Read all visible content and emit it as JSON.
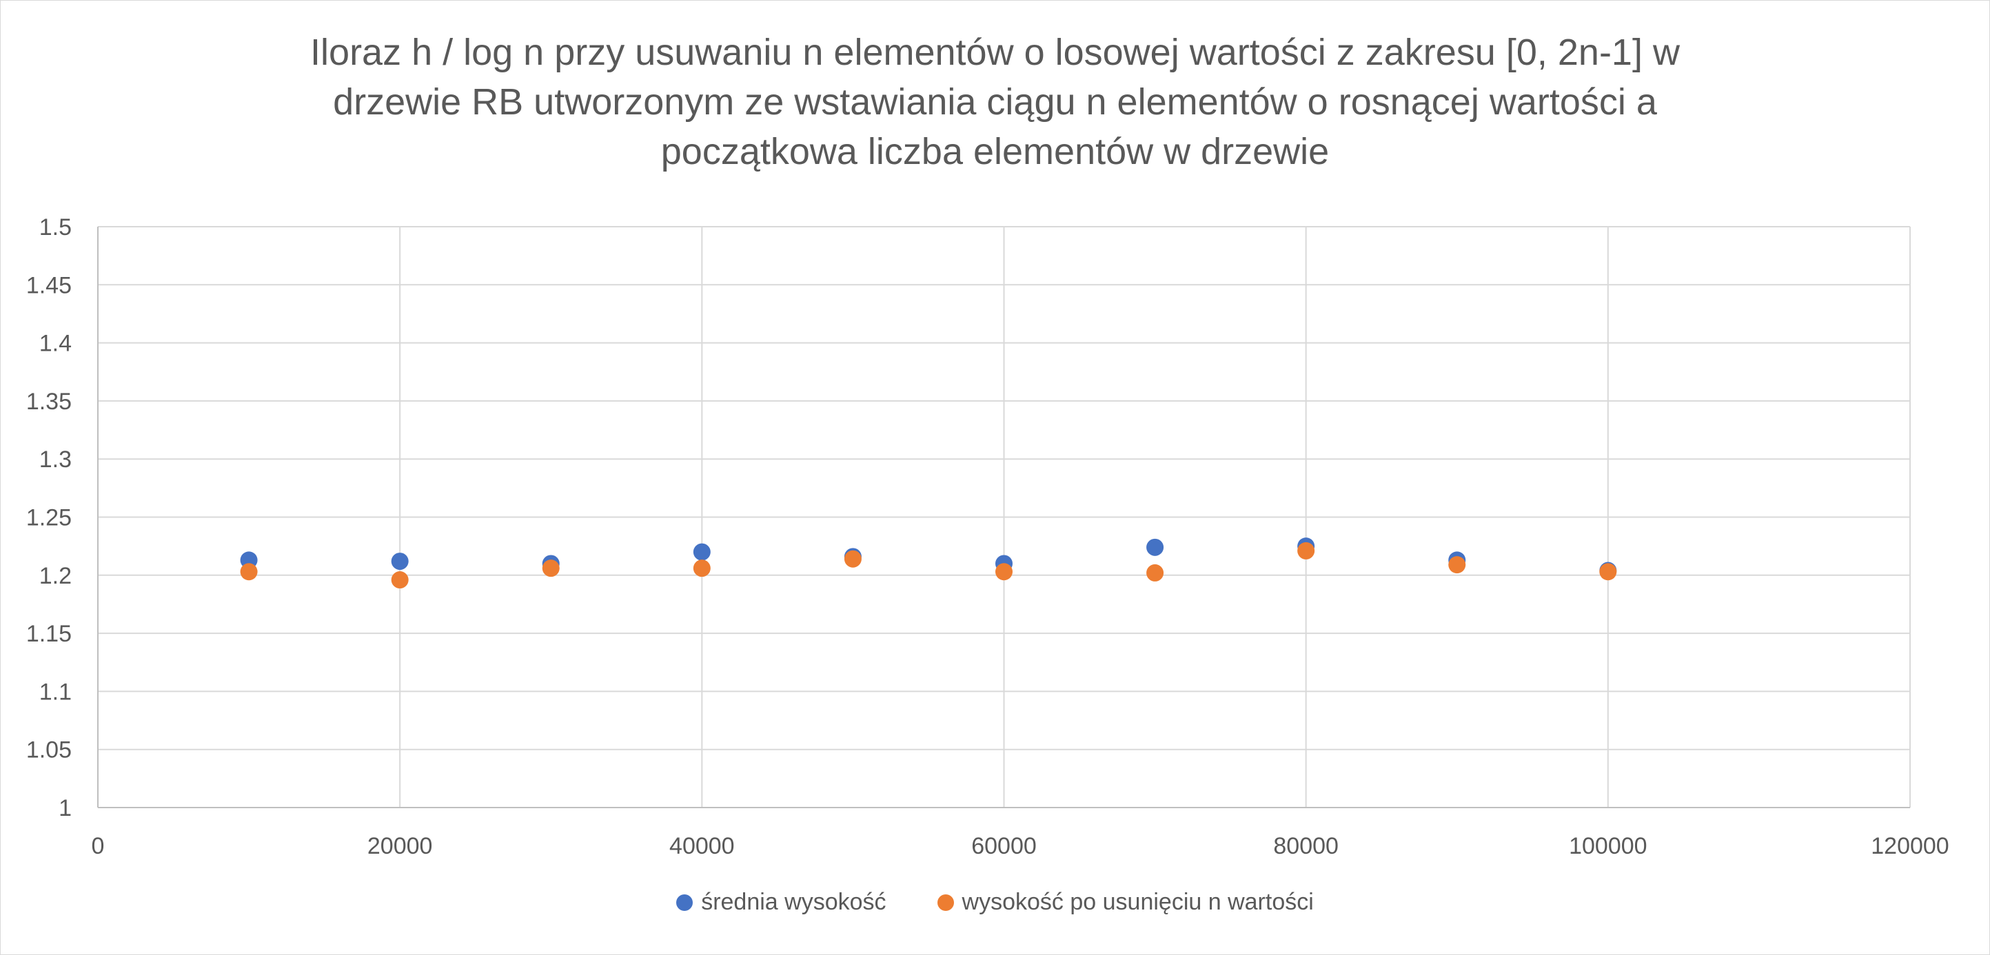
{
  "chart_data": {
    "type": "scatter",
    "title_lines": [
      "Iloraz h / log n przy usuwaniu n elementów o losowej wartości z zakresu [0, 2n-1] w",
      "drzewie RB utworzonym ze wstawiania ciągu n elementów o rosnącej wartości a",
      "początkowa liczba elementów w drzewie"
    ],
    "xlabel": "",
    "ylabel": "",
    "xlim": [
      0,
      120000
    ],
    "ylim": [
      1,
      1.5
    ],
    "x_ticks": [
      0,
      20000,
      40000,
      60000,
      80000,
      100000,
      120000
    ],
    "y_ticks": [
      1,
      1.05,
      1.1,
      1.15,
      1.2,
      1.25,
      1.3,
      1.35,
      1.4,
      1.45,
      1.5
    ],
    "grid": true,
    "legend_position": "bottom",
    "x": [
      10000,
      20000,
      30000,
      40000,
      50000,
      60000,
      70000,
      80000,
      90000,
      100000
    ],
    "series": [
      {
        "name": "średnia wysokość",
        "color": "#4472C4",
        "values": [
          1.213,
          1.212,
          1.21,
          1.22,
          1.216,
          1.21,
          1.224,
          1.225,
          1.213,
          1.204
        ]
      },
      {
        "name": "wysokość po usunięciu n wartości",
        "color": "#ED7D31",
        "values": [
          1.203,
          1.196,
          1.206,
          1.206,
          1.214,
          1.203,
          1.202,
          1.221,
          1.209,
          1.203
        ]
      }
    ]
  }
}
